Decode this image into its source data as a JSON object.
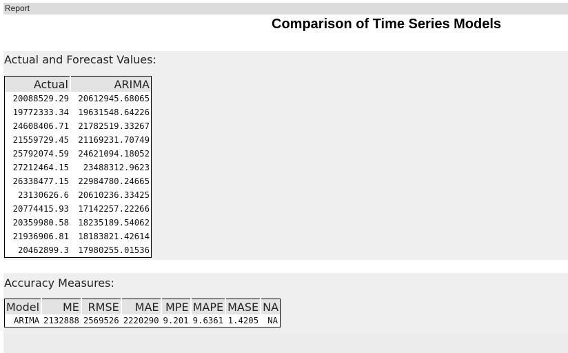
{
  "tab": {
    "label": "Report"
  },
  "title": "Comparison of Time Series Models",
  "forecast_section": {
    "heading": "Actual and Forecast Values:",
    "columns": [
      "Actual",
      "ARIMA"
    ],
    "rows": [
      [
        "20088529.29",
        "20612945.68065"
      ],
      [
        "19772333.34",
        "19631548.64226"
      ],
      [
        "24608406.71",
        "21782519.33267"
      ],
      [
        "21559729.45",
        "21169231.70749"
      ],
      [
        "25792074.59",
        "24621094.18052"
      ],
      [
        "27212464.15",
        "23488312.9623"
      ],
      [
        "26338477.15",
        "22984780.24665"
      ],
      [
        "23130626.6",
        "20610236.33425"
      ],
      [
        "20774415.93",
        "17142257.22266"
      ],
      [
        "20359980.58",
        "18235189.54062"
      ],
      [
        "21936906.81",
        "18183821.42614"
      ],
      [
        "20462899.3",
        "17980255.01536"
      ]
    ]
  },
  "accuracy_section": {
    "heading": "Accuracy Measures:",
    "columns": [
      "Model",
      "ME",
      "RMSE",
      "MAE",
      "MPE",
      "MAPE",
      "MASE",
      "NA"
    ],
    "rows": [
      [
        "ARIMA",
        "2132888",
        "2569526",
        "2220290",
        "9.201",
        "9.6361",
        "1.4205",
        "NA"
      ]
    ]
  }
}
